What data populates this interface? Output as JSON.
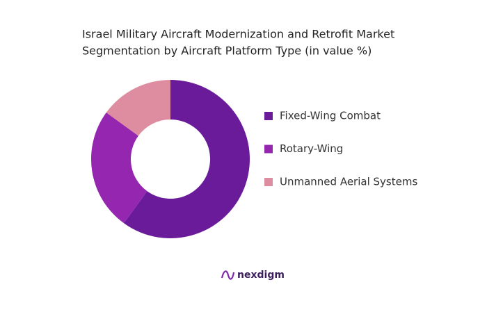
{
  "chart_data": {
    "type": "donut",
    "title": [
      "Israel Military Aircraft Modernization and Retrofit Market",
      "Segmentation by Aircraft Platform Type (in value %)"
    ],
    "categories": [
      "Fixed-Wing Combat",
      "Rotary-Wing",
      "Unmanned Aerial Systems"
    ],
    "values": [
      60,
      25,
      15
    ],
    "colors": [
      "#6a1b9a",
      "#9426b0",
      "#de8ca0"
    ],
    "legend": "right"
  },
  "brand": "nexdigm"
}
